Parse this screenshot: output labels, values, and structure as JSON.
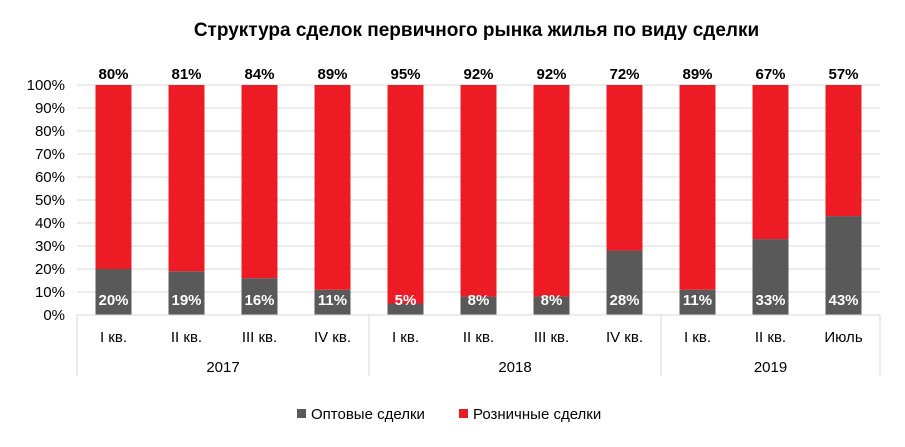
{
  "chart_data": {
    "type": "bar",
    "stacked": true,
    "title": "Структура сделок первичного рынка жилья по виду сделки",
    "categories": [
      "I кв.",
      "II кв.",
      "III кв.",
      "IV кв.",
      "I кв.",
      "II кв.",
      "III кв.",
      "IV кв.",
      "I кв.",
      "II кв.",
      "Июль"
    ],
    "groups": [
      {
        "label": "2017",
        "count": 4
      },
      {
        "label": "2018",
        "count": 4
      },
      {
        "label": "2019",
        "count": 3
      }
    ],
    "series": [
      {
        "name": "Оптовые сделки",
        "color": "#595959",
        "values": [
          20,
          19,
          16,
          11,
          5,
          8,
          8,
          28,
          11,
          33,
          43
        ],
        "labels": [
          "20%",
          "19%",
          "16%",
          "11%",
          "5%",
          "8%",
          "8%",
          "28%",
          "11%",
          "33%",
          "43%"
        ]
      },
      {
        "name": "Розничные сделки",
        "color": "#ED1C24",
        "values": [
          80,
          81,
          84,
          89,
          95,
          92,
          92,
          72,
          89,
          67,
          57
        ],
        "labels": [
          "80%",
          "81%",
          "84%",
          "89%",
          "95%",
          "92%",
          "92%",
          "72%",
          "89%",
          "67%",
          "57%"
        ]
      }
    ],
    "y_ticks": [
      "0%",
      "10%",
      "20%",
      "30%",
      "40%",
      "50%",
      "60%",
      "70%",
      "80%",
      "90%",
      "100%"
    ],
    "ylim": [
      0,
      100
    ],
    "grid": true,
    "legend_position": "bottom"
  }
}
